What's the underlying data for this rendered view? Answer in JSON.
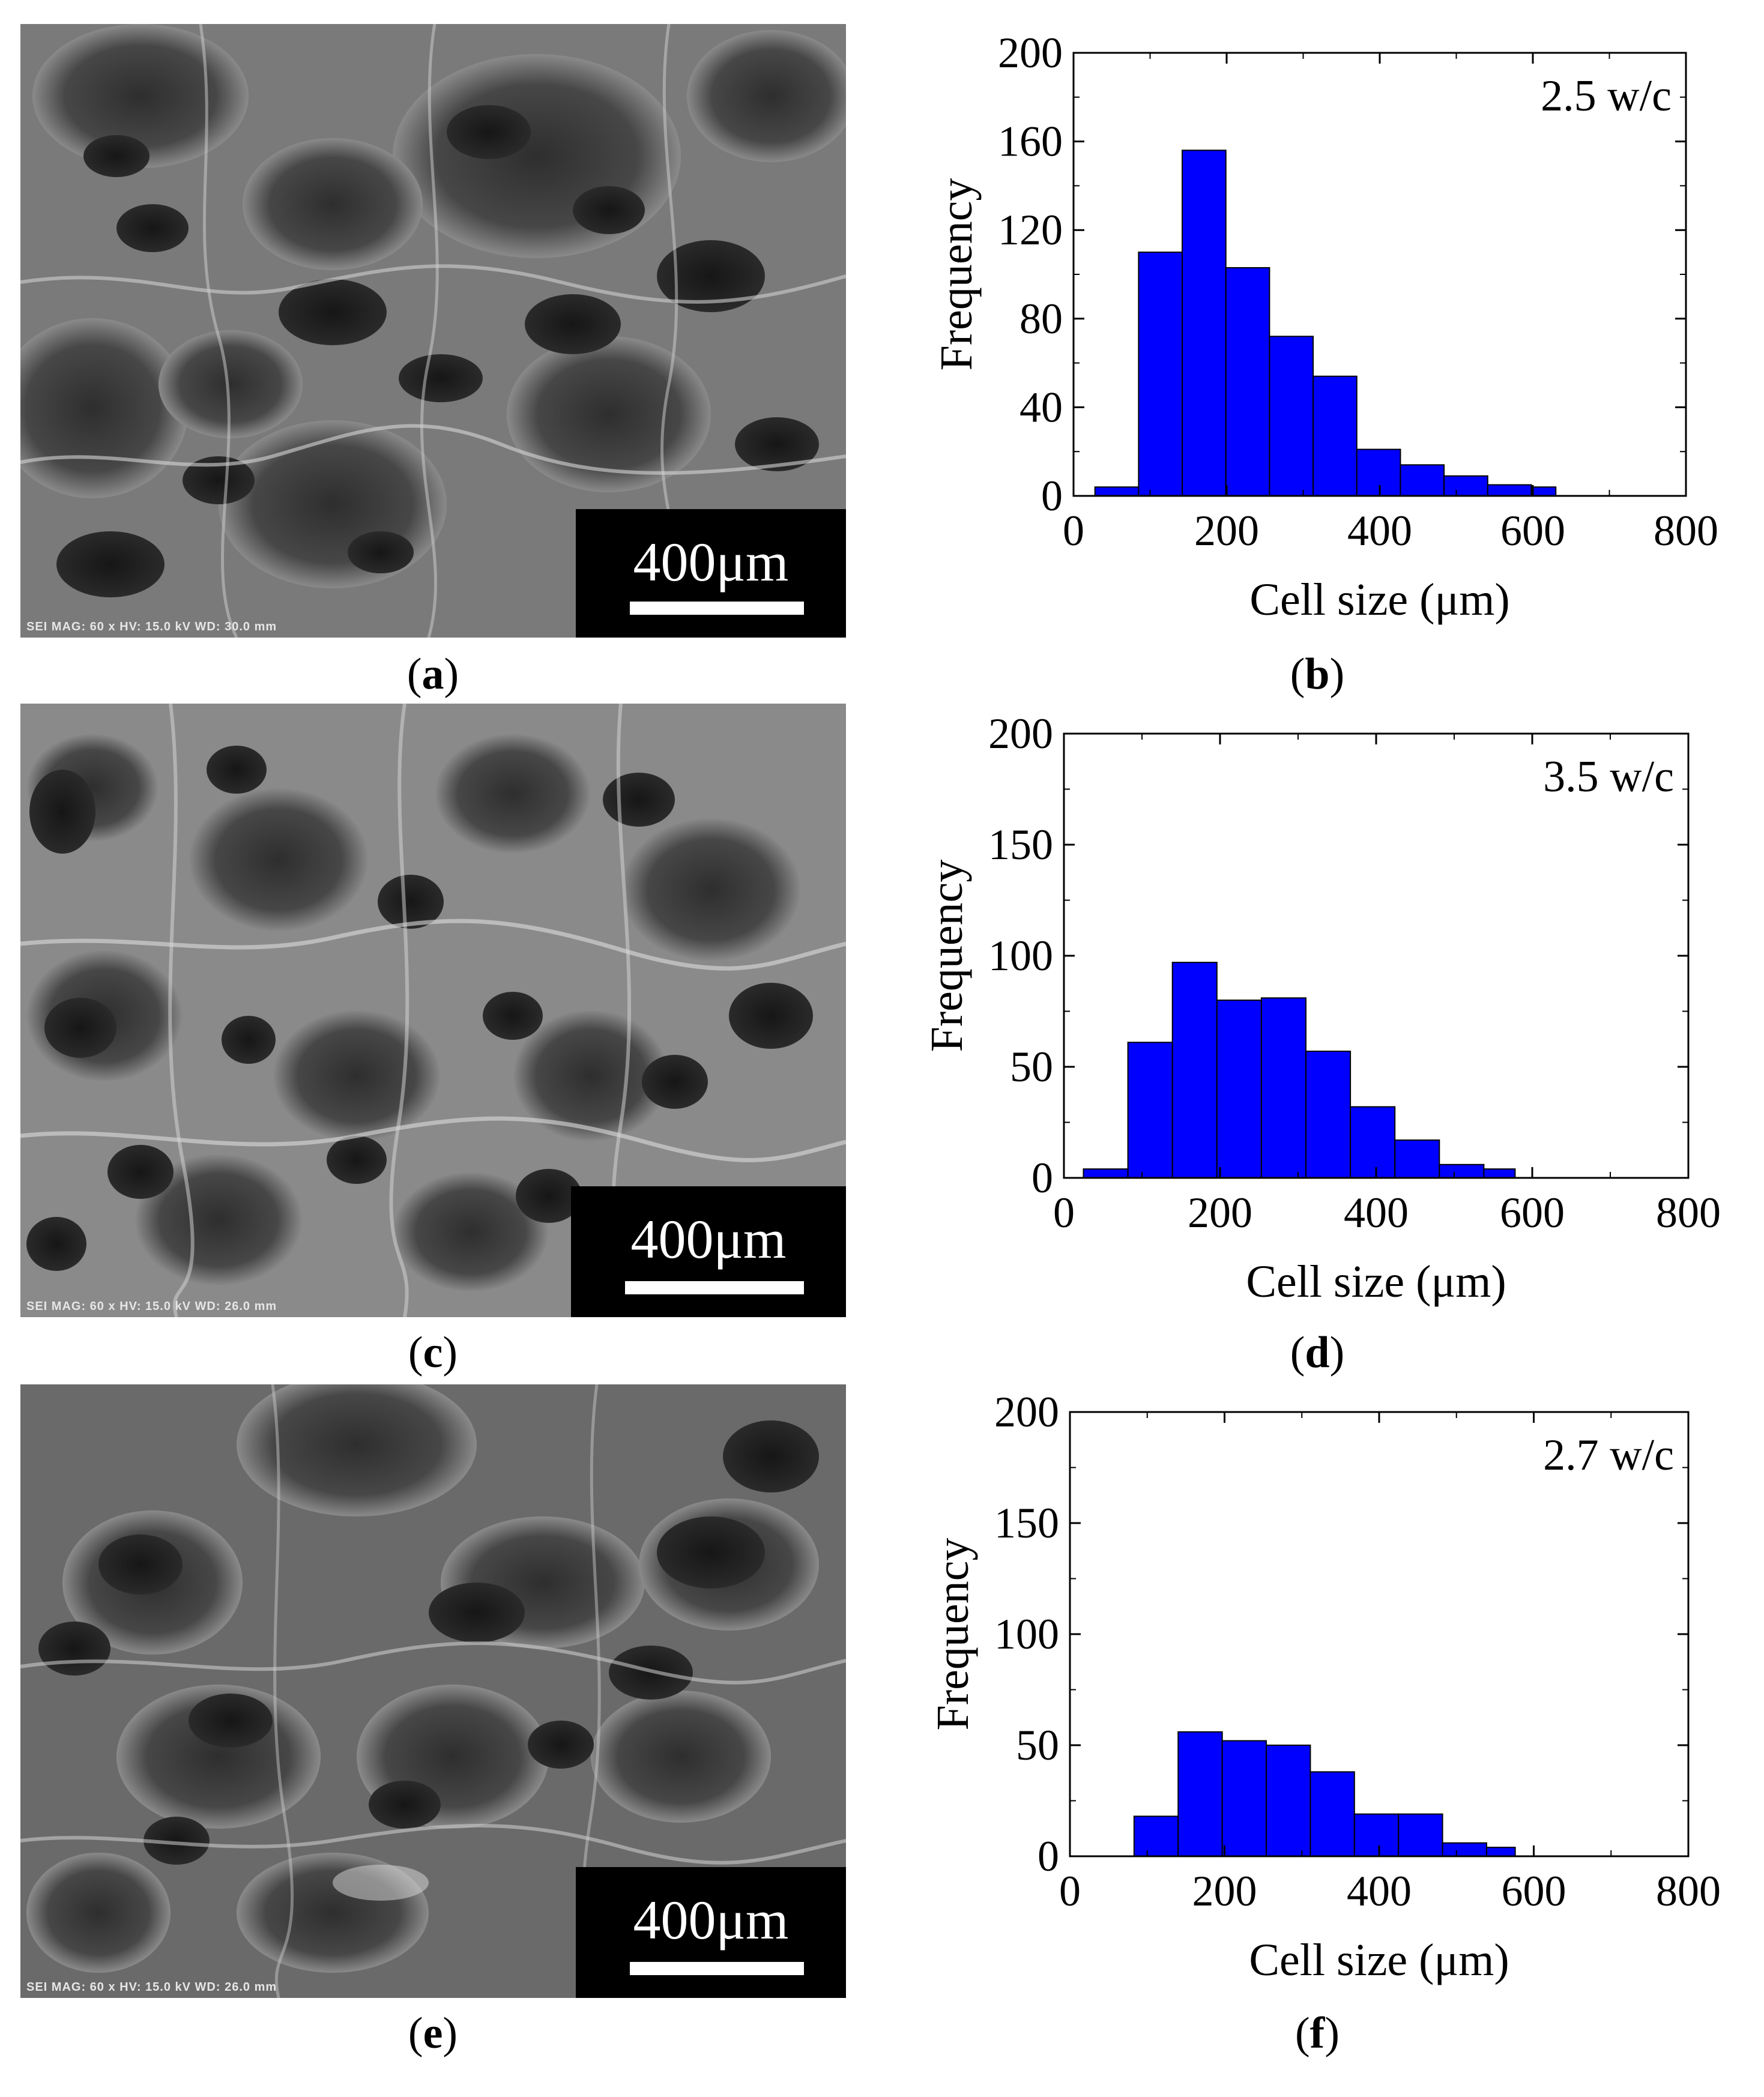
{
  "panels": [
    {
      "id": "a",
      "label": "a",
      "scale_text": "400μm",
      "sem_info": "SEI MAG: 60 x HV: 15.0 kV WD: 30.0 mm"
    },
    {
      "id": "c",
      "label": "c",
      "scale_text": "400μm",
      "sem_info": "SEI MAG: 60 x HV: 15.0 kV WD: 26.0 mm"
    },
    {
      "id": "e",
      "label": "e",
      "scale_text": "400μm",
      "sem_info": "SEI MAG: 60 x HV: 15.0 kV WD: 26.0 mm"
    }
  ],
  "chart_labels": [
    "b",
    "d",
    "f"
  ],
  "colors": {
    "bar": "#0000ff",
    "bar_edge": "#000000"
  },
  "chart_data": [
    {
      "type": "bar",
      "annotation": "2.5 w/c",
      "xlabel": "Cell size (μm)",
      "ylabel": "Frequency",
      "xlim": [
        0,
        800
      ],
      "ylim": [
        0,
        200
      ],
      "xticks": [
        0,
        200,
        400,
        600,
        800
      ],
      "yticks": [
        0,
        40,
        80,
        120,
        160,
        200
      ],
      "bin_edges": [
        28,
        85,
        142,
        199,
        256,
        313,
        370,
        427,
        484,
        541,
        598,
        630
      ],
      "values": [
        4,
        110,
        156,
        103,
        72,
        54,
        21,
        14,
        9,
        5,
        4
      ]
    },
    {
      "type": "bar",
      "annotation": "3.5 w/c",
      "xlabel": "Cell size (μm)",
      "ylabel": "Frequency",
      "xlim": [
        0,
        800
      ],
      "ylim": [
        0,
        200
      ],
      "xticks": [
        0,
        200,
        400,
        600,
        800
      ],
      "yticks": [
        0,
        50,
        100,
        150,
        200
      ],
      "bin_edges": [
        25,
        82,
        139,
        196,
        253,
        310,
        367,
        424,
        481,
        538,
        578
      ],
      "values": [
        4,
        61,
        97,
        80,
        81,
        57,
        32,
        17,
        6,
        4
      ]
    },
    {
      "type": "bar",
      "annotation": "2.7 w/c",
      "xlabel": "Cell size (μm)",
      "ylabel": "Frequency",
      "xlim": [
        0,
        800
      ],
      "ylim": [
        0,
        200
      ],
      "xticks": [
        0,
        200,
        400,
        600,
        800
      ],
      "yticks": [
        0,
        50,
        100,
        150,
        200
      ],
      "bin_edges": [
        83,
        140,
        197,
        254,
        311,
        368,
        425,
        482,
        539,
        576
      ],
      "values": [
        18,
        56,
        52,
        50,
        38,
        19,
        19,
        6,
        4
      ]
    }
  ]
}
